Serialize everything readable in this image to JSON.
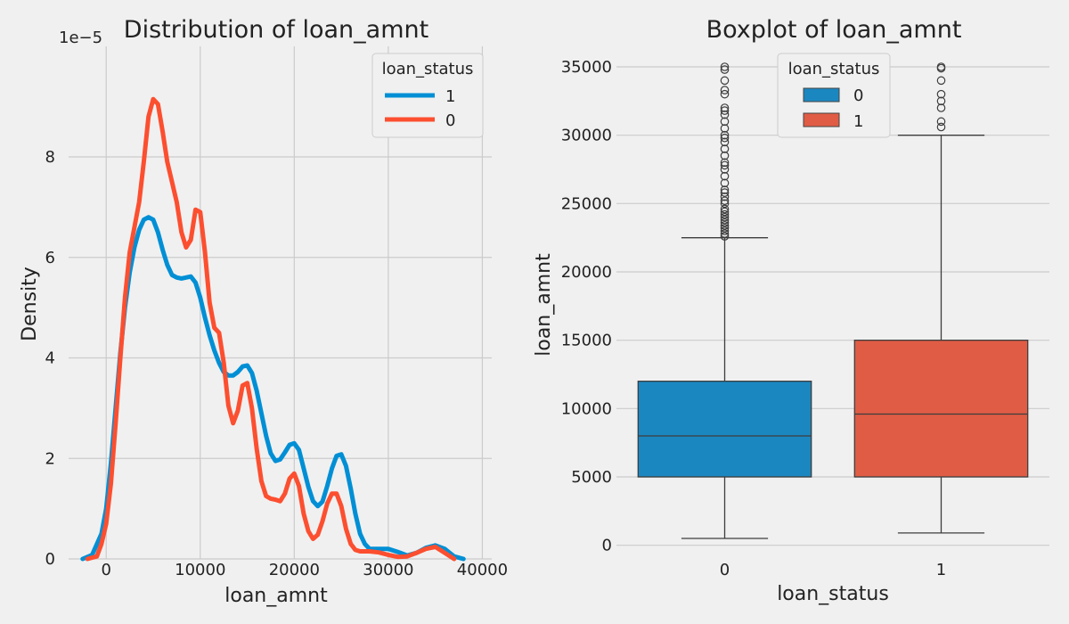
{
  "colors": {
    "blue": "#008fd5",
    "red": "#fc4f30",
    "box_blue": "#1b87c0",
    "box_red": "#e05c45",
    "background": "#f0f0f0"
  },
  "chart_data": [
    {
      "type": "line",
      "title": "Distribution of loan_amnt",
      "xlabel": "loan_amnt",
      "ylabel": "Density",
      "yscale_label": "1e−5",
      "xlim": [
        -4000,
        41000
      ],
      "ylim": [
        0,
        10.2
      ],
      "y_unit_multiplier": 1e-05,
      "xticks": [
        0,
        10000,
        20000,
        30000,
        40000
      ],
      "yticks": [
        0,
        2,
        4,
        6,
        8
      ],
      "legend": {
        "title": "loan_status",
        "position": "top-right"
      },
      "series": [
        {
          "name": "1",
          "color": "#008fd5",
          "x": [
            -2500,
            -1500,
            -500,
            0,
            500,
            1000,
            1500,
            2000,
            2500,
            3000,
            3500,
            4000,
            4500,
            5000,
            5500,
            6000,
            6500,
            7000,
            7500,
            8000,
            8500,
            9000,
            9500,
            10000,
            10500,
            11000,
            11500,
            12000,
            12500,
            13000,
            13500,
            14000,
            14500,
            15000,
            15500,
            16000,
            16500,
            17000,
            17500,
            18000,
            18500,
            19000,
            19500,
            20000,
            20500,
            21000,
            21500,
            22000,
            22500,
            23000,
            23500,
            24000,
            24500,
            25000,
            25500,
            26000,
            26500,
            27000,
            27500,
            28000,
            29000,
            30000,
            31000,
            32000,
            33000,
            34000,
            35000,
            36000,
            37000,
            38000
          ],
          "y": [
            0.0,
            0.08,
            0.5,
            1.0,
            1.9,
            3.0,
            4.1,
            5.0,
            5.7,
            6.2,
            6.55,
            6.75,
            6.8,
            6.75,
            6.5,
            6.15,
            5.85,
            5.65,
            5.6,
            5.58,
            5.6,
            5.62,
            5.5,
            5.2,
            4.8,
            4.45,
            4.15,
            3.9,
            3.72,
            3.65,
            3.65,
            3.72,
            3.83,
            3.85,
            3.7,
            3.35,
            2.9,
            2.45,
            2.1,
            1.95,
            1.98,
            2.12,
            2.27,
            2.3,
            2.17,
            1.8,
            1.43,
            1.15,
            1.05,
            1.14,
            1.45,
            1.8,
            2.05,
            2.08,
            1.85,
            1.4,
            0.9,
            0.5,
            0.3,
            0.2,
            0.2,
            0.2,
            0.14,
            0.07,
            0.12,
            0.22,
            0.27,
            0.2,
            0.05,
            0.0
          ]
        },
        {
          "name": "0",
          "color": "#fc4f30",
          "x": [
            -2000,
            -1000,
            -500,
            0,
            500,
            1000,
            1500,
            2000,
            2500,
            3000,
            3500,
            4000,
            4500,
            5000,
            5500,
            6000,
            6500,
            7000,
            7500,
            8000,
            8500,
            9000,
            9500,
            10000,
            10500,
            11000,
            11500,
            12000,
            12500,
            13000,
            13500,
            14000,
            14500,
            15000,
            15500,
            16000,
            16500,
            17000,
            17500,
            18000,
            18500,
            19000,
            19500,
            20000,
            20500,
            21000,
            21500,
            22000,
            22500,
            23000,
            23500,
            24000,
            24500,
            25000,
            25500,
            26000,
            26500,
            27000,
            27500,
            28000,
            29000,
            30000,
            31000,
            32000,
            33000,
            34000,
            35000,
            36000,
            37000
          ],
          "y": [
            0.0,
            0.05,
            0.3,
            0.7,
            1.5,
            2.7,
            4.0,
            5.2,
            6.1,
            6.6,
            7.1,
            7.9,
            8.8,
            9.15,
            9.05,
            8.5,
            7.9,
            7.5,
            7.1,
            6.5,
            6.2,
            6.35,
            6.95,
            6.9,
            6.1,
            5.1,
            4.6,
            4.5,
            3.9,
            3.05,
            2.7,
            2.95,
            3.45,
            3.5,
            3.0,
            2.2,
            1.55,
            1.25,
            1.2,
            1.18,
            1.15,
            1.3,
            1.6,
            1.7,
            1.45,
            0.9,
            0.55,
            0.4,
            0.48,
            0.75,
            1.1,
            1.3,
            1.3,
            1.05,
            0.6,
            0.3,
            0.18,
            0.15,
            0.15,
            0.15,
            0.13,
            0.08,
            0.04,
            0.05,
            0.12,
            0.2,
            0.24,
            0.12,
            0.0
          ]
        }
      ]
    },
    {
      "type": "box",
      "title": "Boxplot of loan_amnt",
      "xlabel": "loan_status",
      "ylabel": "loan_amnt",
      "categories": [
        "0",
        "1"
      ],
      "ylim": [
        -1000,
        36500
      ],
      "yticks": [
        0,
        5000,
        10000,
        15000,
        20000,
        25000,
        30000,
        35000
      ],
      "legend": {
        "title": "loan_status",
        "position": "top-center",
        "entries": [
          "0",
          "1"
        ]
      },
      "boxes": [
        {
          "category": "0",
          "color": "#1b87c0",
          "whisker_low": 500,
          "q1": 5000,
          "median": 8000,
          "q3": 12000,
          "whisker_high": 22500,
          "outliers": [
            22600,
            22800,
            23000,
            23200,
            23400,
            23600,
            23800,
            24000,
            24200,
            24400,
            24600,
            25000,
            25200,
            25500,
            25800,
            26000,
            26500,
            27000,
            27500,
            27800,
            28000,
            28500,
            29000,
            29500,
            29800,
            30000,
            30500,
            31000,
            31500,
            31800,
            32000,
            33000,
            33300,
            34000,
            34800,
            35000
          ]
        },
        {
          "category": "1",
          "color": "#e05c45",
          "whisker_low": 900,
          "q1": 5000,
          "median": 9600,
          "q3": 15000,
          "whisker_high": 30000,
          "outliers": [
            30600,
            31000,
            32000,
            32500,
            33000,
            34000,
            34900,
            35000
          ]
        }
      ]
    }
  ]
}
